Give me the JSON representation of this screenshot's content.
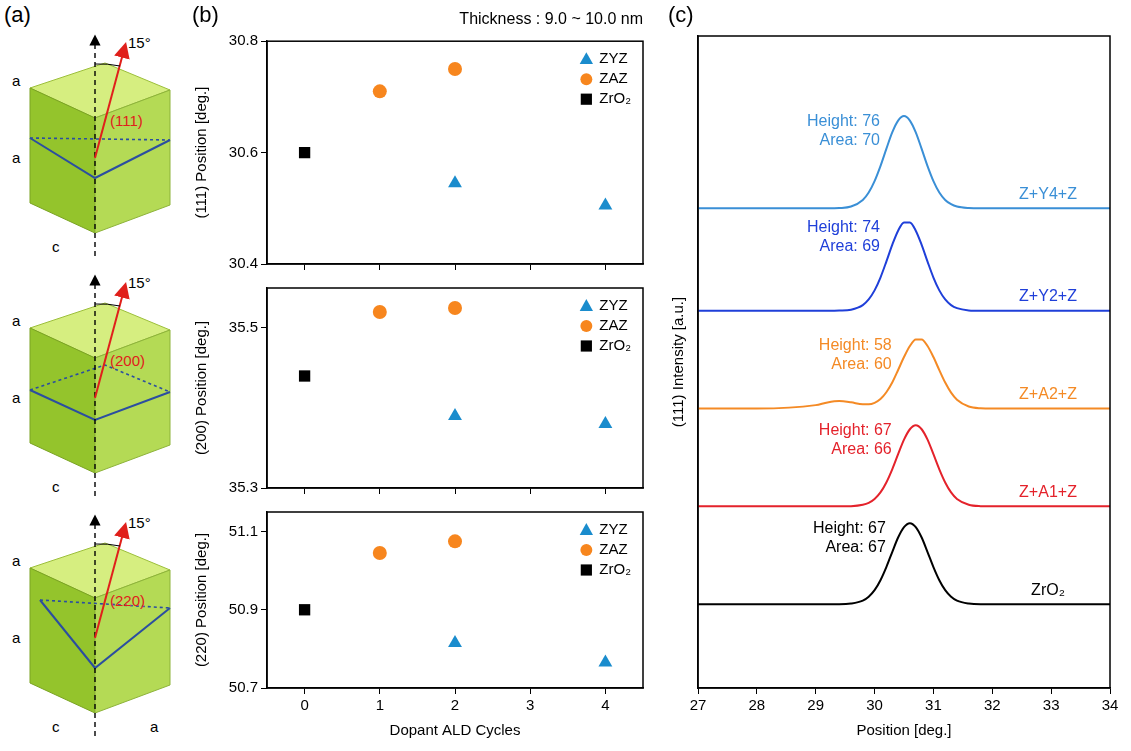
{
  "panel_labels": [
    "(a)",
    "(b)",
    "(c)"
  ],
  "diagram": {
    "panels": [
      {
        "plane": "(111)",
        "angle": "15°",
        "edges": [
          "a",
          "a",
          "c"
        ]
      },
      {
        "plane": "(200)",
        "angle": "15°",
        "edges": [
          "a",
          "a",
          "c"
        ]
      },
      {
        "plane": "(220)",
        "angle": "15°",
        "edges": [
          "a",
          "a",
          "c",
          "a"
        ]
      }
    ]
  },
  "chart_data": [
    {
      "type": "scatter",
      "title": "Thickness : 9.0 ~ 10.0 nm",
      "y_label": "(111) Position [deg.]",
      "xlim": [
        -0.5,
        4.5
      ],
      "xticks": [
        0,
        1,
        2,
        3,
        4
      ],
      "ylim": [
        30.4,
        30.8
      ],
      "yticks": [
        30.4,
        30.6,
        30.8
      ],
      "tick_labels": "y",
      "legend": "upper right",
      "grid": false,
      "series": [
        {
          "name": "ZYZ",
          "color": "#1a8ccd",
          "marker": "triangle",
          "x": [
            2,
            4
          ],
          "values": [
            30.545,
            30.505
          ]
        },
        {
          "name": "ZAZ",
          "color": "#f7861e",
          "marker": "circle",
          "x": [
            1,
            2
          ],
          "values": [
            30.71,
            30.75
          ]
        },
        {
          "name": "ZrO₂",
          "color": "#000000",
          "marker": "square",
          "x": [
            0
          ],
          "values": [
            30.6
          ]
        }
      ]
    },
    {
      "type": "scatter",
      "y_label": "(200) Position [deg.]",
      "xlim": [
        -0.5,
        4.5
      ],
      "xticks": [
        0,
        1,
        2,
        3,
        4
      ],
      "ylim": [
        35.3,
        35.55
      ],
      "yticks": [
        35.3,
        35.5
      ],
      "tick_labels": "y",
      "legend": "upper right",
      "grid": false,
      "series": [
        {
          "name": "ZYZ",
          "color": "#1a8ccd",
          "marker": "triangle",
          "x": [
            2,
            4
          ],
          "values": [
            35.39,
            35.38
          ]
        },
        {
          "name": "ZAZ",
          "color": "#f7861e",
          "marker": "circle",
          "x": [
            1,
            2
          ],
          "values": [
            35.52,
            35.525
          ]
        },
        {
          "name": "ZrO₂",
          "color": "#000000",
          "marker": "square",
          "x": [
            0
          ],
          "values": [
            35.44
          ]
        }
      ]
    },
    {
      "type": "scatter",
      "x_label": "Dopant ALD Cycles",
      "y_label": "(220) Position [deg.]",
      "xlim": [
        -0.5,
        4.5
      ],
      "xticks": [
        0,
        1,
        2,
        3,
        4
      ],
      "ylim": [
        50.7,
        51.15
      ],
      "yticks": [
        50.7,
        50.9,
        51.1
      ],
      "legend": "upper right",
      "grid": false,
      "series": [
        {
          "name": "ZYZ",
          "color": "#1a8ccd",
          "marker": "triangle",
          "x": [
            2,
            4
          ],
          "values": [
            50.815,
            50.765
          ]
        },
        {
          "name": "ZAZ",
          "color": "#f7861e",
          "marker": "circle",
          "x": [
            1,
            2
          ],
          "values": [
            51.045,
            51.075
          ]
        },
        {
          "name": "ZrO₂",
          "color": "#000000",
          "marker": "square",
          "x": [
            0
          ],
          "values": [
            50.9
          ]
        }
      ]
    },
    {
      "type": "line",
      "x_label": "Position [deg.]",
      "y_label": "(111) Intensity [a.u.]",
      "x": [
        27,
        28,
        29,
        29.2,
        29.4,
        29.6,
        29.8,
        29.9,
        30.0,
        30.1,
        30.2,
        30.3,
        30.4,
        30.5,
        30.6,
        30.7,
        30.8,
        30.9,
        31.0,
        31.1,
        31.2,
        31.3,
        31.4,
        31.6,
        31.8,
        32.0,
        32.2,
        33,
        34
      ],
      "xlim": [
        27,
        34
      ],
      "xticks": [
        27,
        28,
        29,
        30,
        31,
        32,
        33,
        34
      ],
      "ylim": [
        0,
        700
      ],
      "tick_labels": "x",
      "grid": false,
      "series": [
        {
          "name": "Z+Y4+Z",
          "color": "#3a8fd6",
          "annotations": [
            "Height: 76",
            "Area: 70"
          ],
          "values": [
            515,
            515,
            515,
            515,
            515.3,
            516.9,
            524.0,
            532.0,
            544.2,
            560.3,
            578.8,
            596.5,
            609.2,
            614,
            609.2,
            596.5,
            578.8,
            560.3,
            544.2,
            532.0,
            524.0,
            519.4,
            516.9,
            515.3,
            515,
            515,
            515,
            515,
            515
          ]
        },
        {
          "name": "Z+Y2+Z",
          "color": "#1f3fd9",
          "annotations": [
            "Height: 74",
            "Area: 69"
          ],
          "values": [
            405,
            405,
            405,
            405,
            405.2,
            406.2,
            411.1,
            417.2,
            426.9,
            440.7,
            457.8,
            475.8,
            491.0,
            499.8,
            499.8,
            491.0,
            475.8,
            457.8,
            440.7,
            426.9,
            417.2,
            411.1,
            407.8,
            405.4,
            405,
            405,
            405,
            405,
            405
          ]
        },
        {
          "name": "Z+A2+Z",
          "color": "#f48a25",
          "annotations": [
            "Height: 58",
            "Area: 60"
          ],
          "values": [
            300,
            300,
            303.7,
            306.6,
            308,
            306.7,
            304.6,
            304.6,
            306.2,
            310.2,
            317.5,
            328.0,
            341.4,
            355.3,
            367.2,
            374.1,
            374.1,
            367.2,
            355.3,
            341.3,
            327.9,
            317.1,
            309.5,
            302.2,
            300.3,
            300,
            300,
            300,
            300
          ]
        },
        {
          "name": "Z+A1+Z",
          "color": "#e4222b",
          "annotations": [
            "Height: 67",
            "Area: 66"
          ],
          "values": [
            195,
            195,
            195,
            195,
            195,
            195.2,
            196.7,
            198.8,
            203.0,
            210.0,
            220.7,
            234.8,
            251.0,
            266.6,
            277.8,
            282,
            277.8,
            266.6,
            251.0,
            234.8,
            220.7,
            210.0,
            203.0,
            196.7,
            195.2,
            195,
            195,
            195,
            195
          ]
        },
        {
          "name": "ZrO₂",
          "color": "#000000",
          "annotations": [
            "Height: 67",
            "Area: 67"
          ],
          "values": [
            90,
            90,
            90,
            90,
            90,
            90.7,
            93.8,
            98.0,
            105.0,
            115.7,
            129.8,
            146.0,
            161.6,
            172.8,
            177,
            172.8,
            161.6,
            146.0,
            129.8,
            115.7,
            105.0,
            98.0,
            93.8,
            90.7,
            90,
            90,
            90,
            90,
            90
          ]
        }
      ]
    }
  ]
}
